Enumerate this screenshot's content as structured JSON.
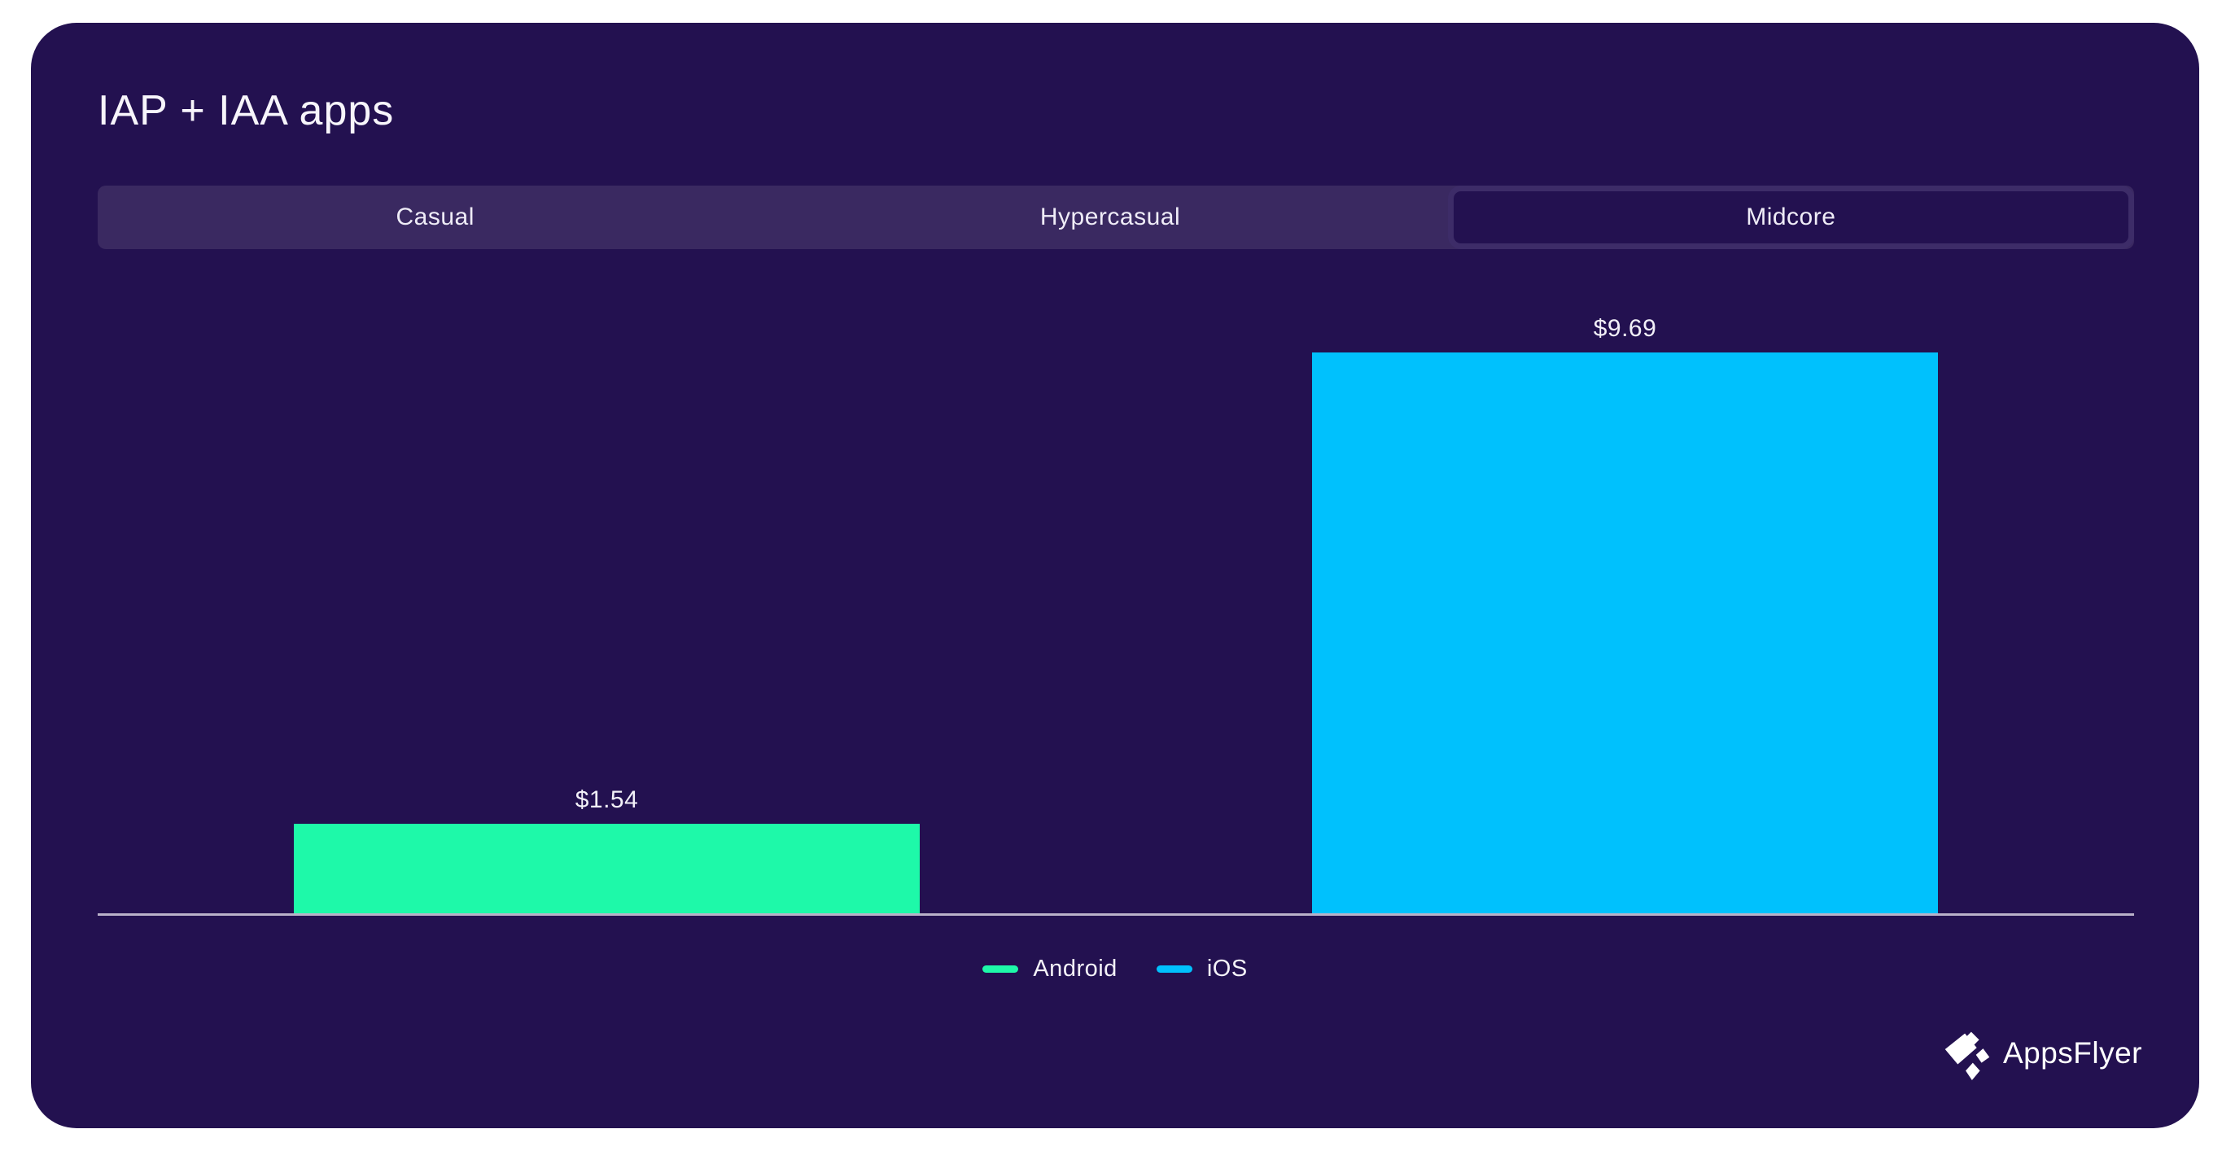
{
  "header": {
    "title": "IAP + IAA apps"
  },
  "tabs": {
    "items": [
      {
        "label": "Casual",
        "selected": false
      },
      {
        "label": "Hypercasual",
        "selected": false
      },
      {
        "label": "Midcore",
        "selected": true
      }
    ]
  },
  "chart_data": {
    "type": "bar",
    "title": "IAP + IAA apps",
    "selected_tab": "Midcore",
    "categories": [
      "Android",
      "iOS"
    ],
    "values": [
      1.54,
      9.69
    ],
    "data_labels": [
      "$1.54",
      "$9.69"
    ],
    "series_colors": [
      "#1ef9a9",
      "#00c1fd"
    ],
    "xlabel": "",
    "ylabel": "",
    "ylim": [
      0,
      9.69
    ],
    "grid": false,
    "legend_position": "bottom",
    "legend": [
      "Android",
      "iOS"
    ]
  },
  "legend": {
    "items": [
      {
        "label": "Android",
        "color": "#1ef9a9"
      },
      {
        "label": "iOS",
        "color": "#00c1fd"
      }
    ]
  },
  "footer": {
    "logo_text": "AppsFlyer",
    "logo_icon": "appsflyer-pinwheel-icon"
  },
  "colors": {
    "page_bg": "#ffffff",
    "card_bg": "#231150",
    "tab_bar_bg": "#3a2961",
    "tab_selected_border": "#3d2c68",
    "axis_line": "#b9b2c9",
    "text": "#f4f2f8",
    "android_bar": "#1ef9a9",
    "ios_bar": "#00c1fd"
  }
}
